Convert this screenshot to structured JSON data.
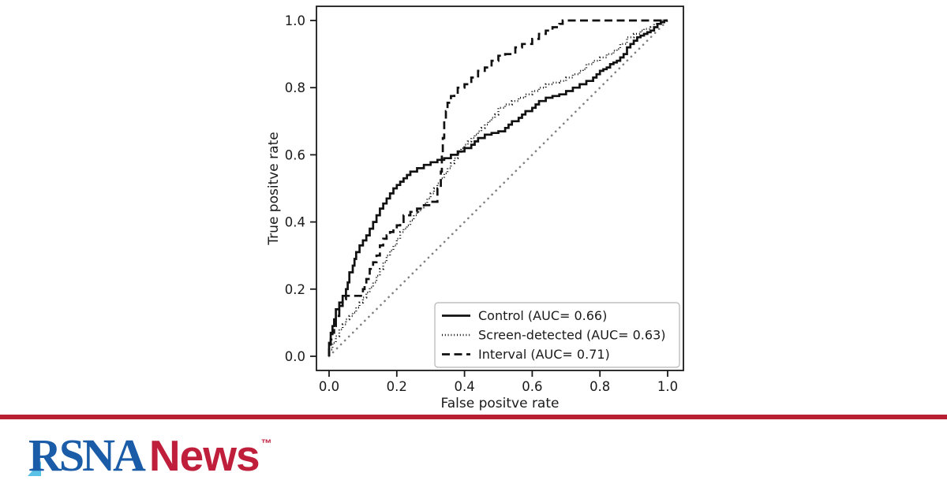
{
  "page": {
    "background": "#ffffff"
  },
  "chart_data": {
    "type": "line",
    "subtype": "roc-step-curves",
    "title": "",
    "xlabel": "False positve rate",
    "ylabel": "True positve rate",
    "xlim": [
      0,
      1
    ],
    "ylim": [
      0,
      1
    ],
    "xticks": [
      "0.0",
      "0.2",
      "0.4",
      "0.6",
      "0.8",
      "1.0"
    ],
    "yticks": [
      "0.0",
      "0.2",
      "0.4",
      "0.6",
      "0.8",
      "1.0"
    ],
    "grid": false,
    "legend": {
      "position": "lower right"
    },
    "axis_color": "#1a1a1a",
    "series": [
      {
        "key": "control",
        "label": "Control (AUC= 0.66)",
        "auc": 0.66,
        "style": "solid",
        "color": "#111111",
        "points": [
          [
            0,
            0
          ],
          [
            0.005,
            0.04
          ],
          [
            0.01,
            0.07
          ],
          [
            0.015,
            0.09
          ],
          [
            0.02,
            0.11
          ],
          [
            0.03,
            0.14
          ],
          [
            0.04,
            0.16
          ],
          [
            0.05,
            0.18
          ],
          [
            0.055,
            0.2
          ],
          [
            0.06,
            0.22
          ],
          [
            0.07,
            0.25
          ],
          [
            0.075,
            0.27
          ],
          [
            0.08,
            0.29
          ],
          [
            0.09,
            0.31
          ],
          [
            0.1,
            0.33
          ],
          [
            0.11,
            0.345
          ],
          [
            0.12,
            0.36
          ],
          [
            0.13,
            0.38
          ],
          [
            0.14,
            0.4
          ],
          [
            0.15,
            0.42
          ],
          [
            0.16,
            0.44
          ],
          [
            0.17,
            0.455
          ],
          [
            0.18,
            0.47
          ],
          [
            0.19,
            0.485
          ],
          [
            0.2,
            0.5
          ],
          [
            0.21,
            0.51
          ],
          [
            0.22,
            0.52
          ],
          [
            0.23,
            0.53
          ],
          [
            0.24,
            0.54
          ],
          [
            0.26,
            0.55
          ],
          [
            0.28,
            0.56
          ],
          [
            0.3,
            0.57
          ],
          [
            0.32,
            0.578
          ],
          [
            0.34,
            0.585
          ],
          [
            0.36,
            0.59
          ],
          [
            0.38,
            0.6
          ],
          [
            0.4,
            0.61
          ],
          [
            0.42,
            0.62
          ],
          [
            0.43,
            0.63
          ],
          [
            0.44,
            0.64
          ],
          [
            0.46,
            0.65
          ],
          [
            0.48,
            0.66
          ],
          [
            0.5,
            0.665
          ],
          [
            0.52,
            0.67
          ],
          [
            0.53,
            0.68
          ],
          [
            0.54,
            0.69
          ],
          [
            0.56,
            0.7
          ],
          [
            0.57,
            0.71
          ],
          [
            0.58,
            0.72
          ],
          [
            0.6,
            0.73
          ],
          [
            0.61,
            0.74
          ],
          [
            0.62,
            0.75
          ],
          [
            0.64,
            0.76
          ],
          [
            0.66,
            0.77
          ],
          [
            0.68,
            0.775
          ],
          [
            0.7,
            0.78
          ],
          [
            0.72,
            0.79
          ],
          [
            0.74,
            0.8
          ],
          [
            0.76,
            0.81
          ],
          [
            0.78,
            0.82
          ],
          [
            0.79,
            0.83
          ],
          [
            0.8,
            0.84
          ],
          [
            0.81,
            0.85
          ],
          [
            0.82,
            0.855
          ],
          [
            0.83,
            0.86
          ],
          [
            0.84,
            0.87
          ],
          [
            0.85,
            0.875
          ],
          [
            0.86,
            0.88
          ],
          [
            0.87,
            0.89
          ],
          [
            0.88,
            0.9
          ],
          [
            0.89,
            0.92
          ],
          [
            0.9,
            0.93
          ],
          [
            0.91,
            0.94
          ],
          [
            0.92,
            0.95
          ],
          [
            0.93,
            0.955
          ],
          [
            0.94,
            0.96
          ],
          [
            0.95,
            0.965
          ],
          [
            0.96,
            0.97
          ],
          [
            0.97,
            0.98
          ],
          [
            0.98,
            0.99
          ],
          [
            0.99,
            0.995
          ],
          [
            1,
            1
          ]
        ]
      },
      {
        "key": "screen-detected",
        "label": "Screen-detected (AUC= 0.63)",
        "auc": 0.63,
        "style": "dotted",
        "color": "#111111",
        "points": [
          [
            0,
            0
          ],
          [
            0.01,
            0.02
          ],
          [
            0.02,
            0.04
          ],
          [
            0.03,
            0.06
          ],
          [
            0.04,
            0.08
          ],
          [
            0.05,
            0.095
          ],
          [
            0.06,
            0.11
          ],
          [
            0.07,
            0.12
          ],
          [
            0.08,
            0.13
          ],
          [
            0.09,
            0.145
          ],
          [
            0.1,
            0.16
          ],
          [
            0.11,
            0.175
          ],
          [
            0.12,
            0.19
          ],
          [
            0.13,
            0.205
          ],
          [
            0.14,
            0.22
          ],
          [
            0.15,
            0.24
          ],
          [
            0.16,
            0.26
          ],
          [
            0.17,
            0.28
          ],
          [
            0.18,
            0.3
          ],
          [
            0.19,
            0.315
          ],
          [
            0.2,
            0.33
          ],
          [
            0.21,
            0.35
          ],
          [
            0.22,
            0.37
          ],
          [
            0.23,
            0.38
          ],
          [
            0.24,
            0.39
          ],
          [
            0.25,
            0.405
          ],
          [
            0.26,
            0.42
          ],
          [
            0.27,
            0.43
          ],
          [
            0.28,
            0.44
          ],
          [
            0.29,
            0.455
          ],
          [
            0.3,
            0.47
          ],
          [
            0.31,
            0.485
          ],
          [
            0.32,
            0.5
          ],
          [
            0.33,
            0.515
          ],
          [
            0.34,
            0.53
          ],
          [
            0.35,
            0.545
          ],
          [
            0.36,
            0.56
          ],
          [
            0.37,
            0.575
          ],
          [
            0.38,
            0.59
          ],
          [
            0.39,
            0.605
          ],
          [
            0.4,
            0.62
          ],
          [
            0.41,
            0.63
          ],
          [
            0.42,
            0.64
          ],
          [
            0.43,
            0.65
          ],
          [
            0.44,
            0.66
          ],
          [
            0.45,
            0.67
          ],
          [
            0.46,
            0.68
          ],
          [
            0.47,
            0.69
          ],
          [
            0.48,
            0.7
          ],
          [
            0.49,
            0.71
          ],
          [
            0.5,
            0.72
          ],
          [
            0.52,
            0.74
          ],
          [
            0.54,
            0.75
          ],
          [
            0.56,
            0.76
          ],
          [
            0.58,
            0.77
          ],
          [
            0.6,
            0.78
          ],
          [
            0.62,
            0.79
          ],
          [
            0.64,
            0.8
          ],
          [
            0.66,
            0.81
          ],
          [
            0.68,
            0.815
          ],
          [
            0.7,
            0.82
          ],
          [
            0.72,
            0.83
          ],
          [
            0.74,
            0.84
          ],
          [
            0.75,
            0.85
          ],
          [
            0.76,
            0.855
          ],
          [
            0.78,
            0.87
          ],
          [
            0.8,
            0.88
          ],
          [
            0.82,
            0.89
          ],
          [
            0.84,
            0.9
          ],
          [
            0.85,
            0.91
          ],
          [
            0.86,
            0.915
          ],
          [
            0.88,
            0.93
          ],
          [
            0.9,
            0.95
          ],
          [
            0.92,
            0.96
          ],
          [
            0.93,
            0.97
          ],
          [
            0.95,
            0.975
          ],
          [
            0.96,
            0.98
          ],
          [
            0.98,
            0.99
          ],
          [
            1,
            1
          ]
        ]
      },
      {
        "key": "interval",
        "label": "Interval (AUC= 0.71)",
        "auc": 0.71,
        "style": "dashed",
        "color": "#111111",
        "points": [
          [
            0,
            0
          ],
          [
            0.005,
            0.03
          ],
          [
            0.01,
            0.05
          ],
          [
            0.015,
            0.07
          ],
          [
            0.02,
            0.09
          ],
          [
            0.025,
            0.11
          ],
          [
            0.03,
            0.12
          ],
          [
            0.035,
            0.14
          ],
          [
            0.04,
            0.15
          ],
          [
            0.05,
            0.17
          ],
          [
            0.055,
            0.18
          ],
          [
            0.1,
            0.18
          ],
          [
            0.105,
            0.2
          ],
          [
            0.11,
            0.21
          ],
          [
            0.12,
            0.23
          ],
          [
            0.13,
            0.26
          ],
          [
            0.14,
            0.28
          ],
          [
            0.15,
            0.3
          ],
          [
            0.16,
            0.33
          ],
          [
            0.17,
            0.35
          ],
          [
            0.18,
            0.36
          ],
          [
            0.19,
            0.37
          ],
          [
            0.2,
            0.38
          ],
          [
            0.21,
            0.39
          ],
          [
            0.22,
            0.4
          ],
          [
            0.24,
            0.42
          ],
          [
            0.26,
            0.43
          ],
          [
            0.28,
            0.44
          ],
          [
            0.3,
            0.45
          ],
          [
            0.32,
            0.46
          ],
          [
            0.33,
            0.5
          ],
          [
            0.333,
            0.55
          ],
          [
            0.336,
            0.6
          ],
          [
            0.34,
            0.65
          ],
          [
            0.345,
            0.7
          ],
          [
            0.35,
            0.73
          ],
          [
            0.36,
            0.755
          ],
          [
            0.37,
            0.775
          ],
          [
            0.38,
            0.78
          ],
          [
            0.4,
            0.8
          ],
          [
            0.42,
            0.81
          ],
          [
            0.44,
            0.83
          ],
          [
            0.46,
            0.85
          ],
          [
            0.48,
            0.86
          ],
          [
            0.5,
            0.88
          ],
          [
            0.52,
            0.895
          ],
          [
            0.55,
            0.9
          ],
          [
            0.57,
            0.92
          ],
          [
            0.6,
            0.93
          ],
          [
            0.62,
            0.945
          ],
          [
            0.64,
            0.96
          ],
          [
            0.66,
            0.97
          ],
          [
            0.68,
            0.98
          ],
          [
            0.69,
            0.99
          ],
          [
            0.7,
            1
          ],
          [
            1,
            1
          ]
        ]
      }
    ],
    "reference_line": {
      "name": "chance-diagonal",
      "style": "dotted",
      "color": "#7f7f7f",
      "from": [
        0,
        0
      ],
      "to": [
        1,
        1
      ]
    }
  },
  "brand": {
    "bar_color": "#b91f33",
    "logo_rsna": "RSNA",
    "logo_news": "News",
    "trademark": "™",
    "rsna_color": "#1a5ca8",
    "news_color": "#c01f3b",
    "accent_triangle_color": "#5bc2e7"
  }
}
